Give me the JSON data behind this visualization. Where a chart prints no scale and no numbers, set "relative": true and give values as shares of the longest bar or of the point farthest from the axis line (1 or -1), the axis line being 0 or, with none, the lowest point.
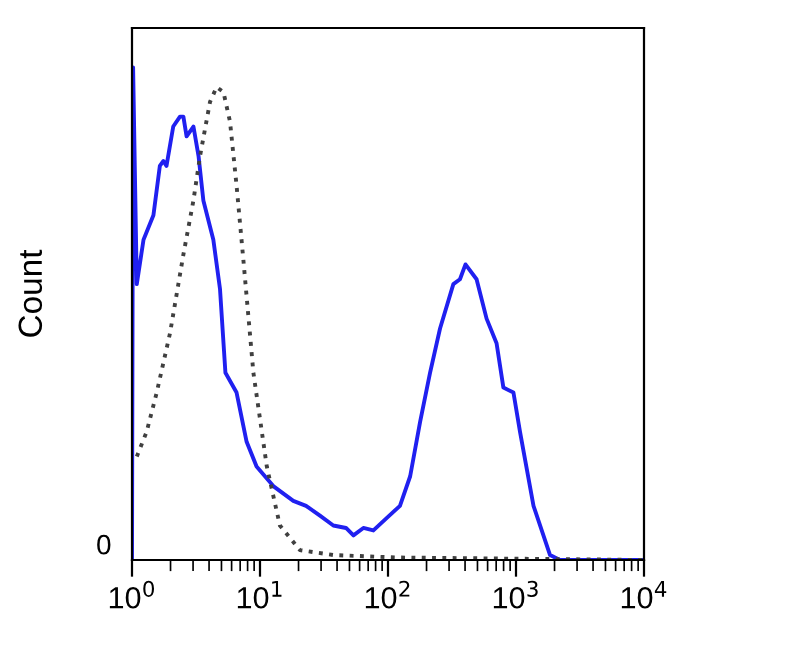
{
  "chart_data": {
    "type": "line",
    "ylabel": "Count",
    "relative": true,
    "log": "x",
    "xlim": [
      1,
      10000
    ],
    "xticks": [
      {
        "value": 1,
        "label": "10$^{0}$"
      },
      {
        "value": 10,
        "label": "10$^{1}$"
      },
      {
        "value": 100,
        "label": "10$^{2}$"
      },
      {
        "value": 1000,
        "label": "10$^{3}$"
      },
      {
        "value": 10000,
        "label": "10$^{4}$"
      }
    ],
    "annotations": [
      "0"
    ],
    "grid": false,
    "marker": "none",
    "series": [
      {
        "color": "#2020f0",
        "line_style": "solid",
        "x": [
          1.0,
          1.02,
          1.09,
          1.23,
          1.47,
          1.65,
          1.76,
          1.86,
          2.1,
          2.37,
          2.52,
          2.67,
          3.02,
          3.31,
          3.61,
          4.32,
          4.87,
          5.37,
          6.56,
          7.86,
          9.4,
          12.7,
          18.2,
          22.9,
          29.4,
          37.4,
          47.0,
          53.7,
          64.2,
          76.9,
          97.5,
          124,
          149,
          178,
          213,
          255,
          324,
          365,
          403,
          492,
          589,
          705,
          797,
          955,
          1075,
          1370,
          1845,
          2206,
          10000
        ],
        "values": [
          0,
          1.0,
          0.56,
          0.65,
          0.7,
          0.8,
          0.81,
          0.8,
          0.88,
          0.9,
          0.9,
          0.86,
          0.88,
          0.82,
          0.73,
          0.65,
          0.55,
          0.38,
          0.34,
          0.24,
          0.19,
          0.15,
          0.12,
          0.11,
          0.09,
          0.07,
          0.065,
          0.05,
          0.065,
          0.06,
          0.085,
          0.11,
          0.17,
          0.28,
          0.38,
          0.47,
          0.56,
          0.57,
          0.6,
          0.57,
          0.49,
          0.44,
          0.35,
          0.34,
          0.26,
          0.11,
          0.01,
          0,
          0
        ]
      },
      {
        "color": "#404040",
        "line_style": "dotted",
        "x": [
          1.09,
          1.3,
          1.56,
          1.98,
          2.52,
          3.02,
          3.4,
          4.07,
          4.58,
          5.18,
          5.83,
          6.56,
          7.41,
          8.88,
          11.3,
          14.3,
          20.5,
          37.4,
          124,
          10000
        ],
        "values": [
          0.21,
          0.26,
          0.34,
          0.46,
          0.62,
          0.73,
          0.82,
          0.93,
          0.96,
          0.95,
          0.89,
          0.76,
          0.61,
          0.38,
          0.19,
          0.07,
          0.02,
          0.01,
          0.005,
          0
        ]
      }
    ]
  }
}
